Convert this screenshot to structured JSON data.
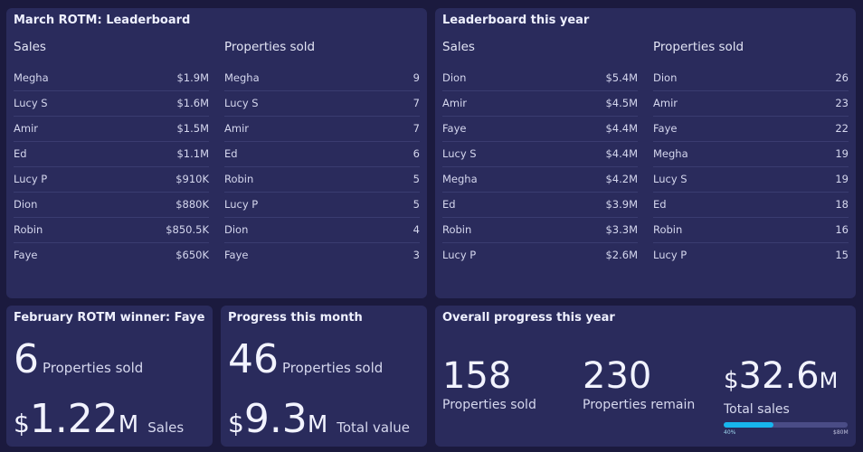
{
  "march": {
    "title": "March ROTM: Leaderboard",
    "sales_header": "Sales",
    "props_header": "Properties sold",
    "sales": [
      [
        "Megha",
        "$1.9M"
      ],
      [
        "Lucy S",
        "$1.6M"
      ],
      [
        "Amir",
        "$1.5M"
      ],
      [
        "Ed",
        "$1.1M"
      ],
      [
        "Lucy P",
        "$910K"
      ],
      [
        "Dion",
        "$880K"
      ],
      [
        "Robin",
        "$850.5K"
      ],
      [
        "Faye",
        "$650K"
      ]
    ],
    "props": [
      [
        "Megha",
        "9"
      ],
      [
        "Lucy S",
        "7"
      ],
      [
        "Amir",
        "7"
      ],
      [
        "Ed",
        "6"
      ],
      [
        "Robin",
        "5"
      ],
      [
        "Lucy P",
        "5"
      ],
      [
        "Dion",
        "4"
      ],
      [
        "Faye",
        "3"
      ]
    ]
  },
  "year": {
    "title": "Leaderboard this year",
    "sales_header": "Sales",
    "props_header": "Properties sold",
    "sales": [
      [
        "Dion",
        "$5.4M"
      ],
      [
        "Amir",
        "$4.5M"
      ],
      [
        "Faye",
        "$4.4M"
      ],
      [
        "Lucy S",
        "$4.4M"
      ],
      [
        "Megha",
        "$4.2M"
      ],
      [
        "Ed",
        "$3.9M"
      ],
      [
        "Robin",
        "$3.3M"
      ],
      [
        "Lucy P",
        "$2.6M"
      ]
    ],
    "props": [
      [
        "Dion",
        "26"
      ],
      [
        "Amir",
        "23"
      ],
      [
        "Faye",
        "22"
      ],
      [
        "Megha",
        "19"
      ],
      [
        "Lucy S",
        "19"
      ],
      [
        "Ed",
        "18"
      ],
      [
        "Robin",
        "16"
      ],
      [
        "Lucy P",
        "15"
      ]
    ]
  },
  "feb": {
    "title": "February ROTM winner: Faye",
    "props": "6",
    "props_label": "Properties sold",
    "cur": "$",
    "sales": "1.22",
    "unit": "M",
    "sales_label": "Sales"
  },
  "month": {
    "title": "Progress this month",
    "props": "46",
    "props_label": "Properties sold",
    "cur": "$",
    "value": "9.3",
    "unit": "M",
    "value_label": "Total value"
  },
  "overall": {
    "title": "Overall progress this year",
    "sold": "158",
    "sold_label": "Properties sold",
    "remain": "230",
    "remain_label": "Properties remain",
    "cur": "$",
    "sales": "32.6",
    "unit": "M",
    "sales_label": "Total sales",
    "progress_percent": 40,
    "progress_label": "40%",
    "target_label": "$80M",
    "bar_color": "#17b6ee"
  }
}
